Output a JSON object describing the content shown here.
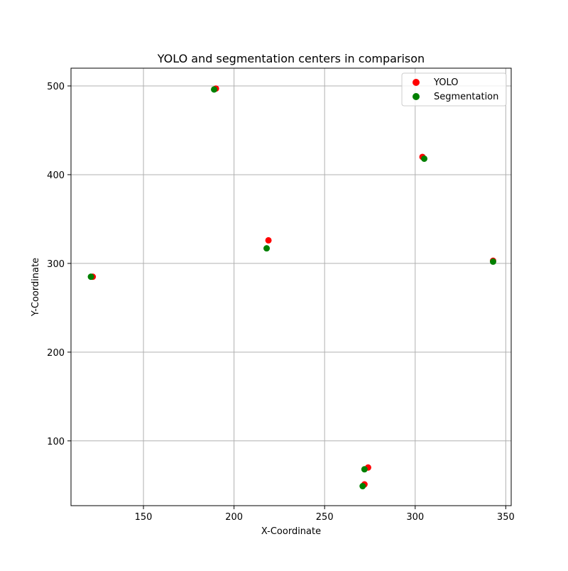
{
  "chart_data": {
    "type": "scatter",
    "title": "YOLO and segmentation centers in comparison",
    "xlabel": "X-Coordinate",
    "ylabel": "Y-Coordinate",
    "xlim": [
      110,
      353
    ],
    "ylim": [
      27,
      520
    ],
    "xticks": [
      150,
      200,
      250,
      300,
      350
    ],
    "yticks": [
      100,
      200,
      300,
      400,
      500
    ],
    "grid": true,
    "legend_position": "top-right",
    "series": [
      {
        "name": "YOLO",
        "color": "#ff0000",
        "points": [
          {
            "x": 190,
            "y": 497
          },
          {
            "x": 304,
            "y": 420
          },
          {
            "x": 219,
            "y": 326
          },
          {
            "x": 122,
            "y": 285
          },
          {
            "x": 343,
            "y": 303
          },
          {
            "x": 274,
            "y": 70
          },
          {
            "x": 272,
            "y": 51
          }
        ]
      },
      {
        "name": "Segmentation",
        "color": "#008000",
        "points": [
          {
            "x": 189,
            "y": 496
          },
          {
            "x": 305,
            "y": 418
          },
          {
            "x": 218,
            "y": 317
          },
          {
            "x": 121,
            "y": 285
          },
          {
            "x": 343,
            "y": 302
          },
          {
            "x": 272,
            "y": 68
          },
          {
            "x": 271,
            "y": 49
          }
        ]
      }
    ]
  }
}
